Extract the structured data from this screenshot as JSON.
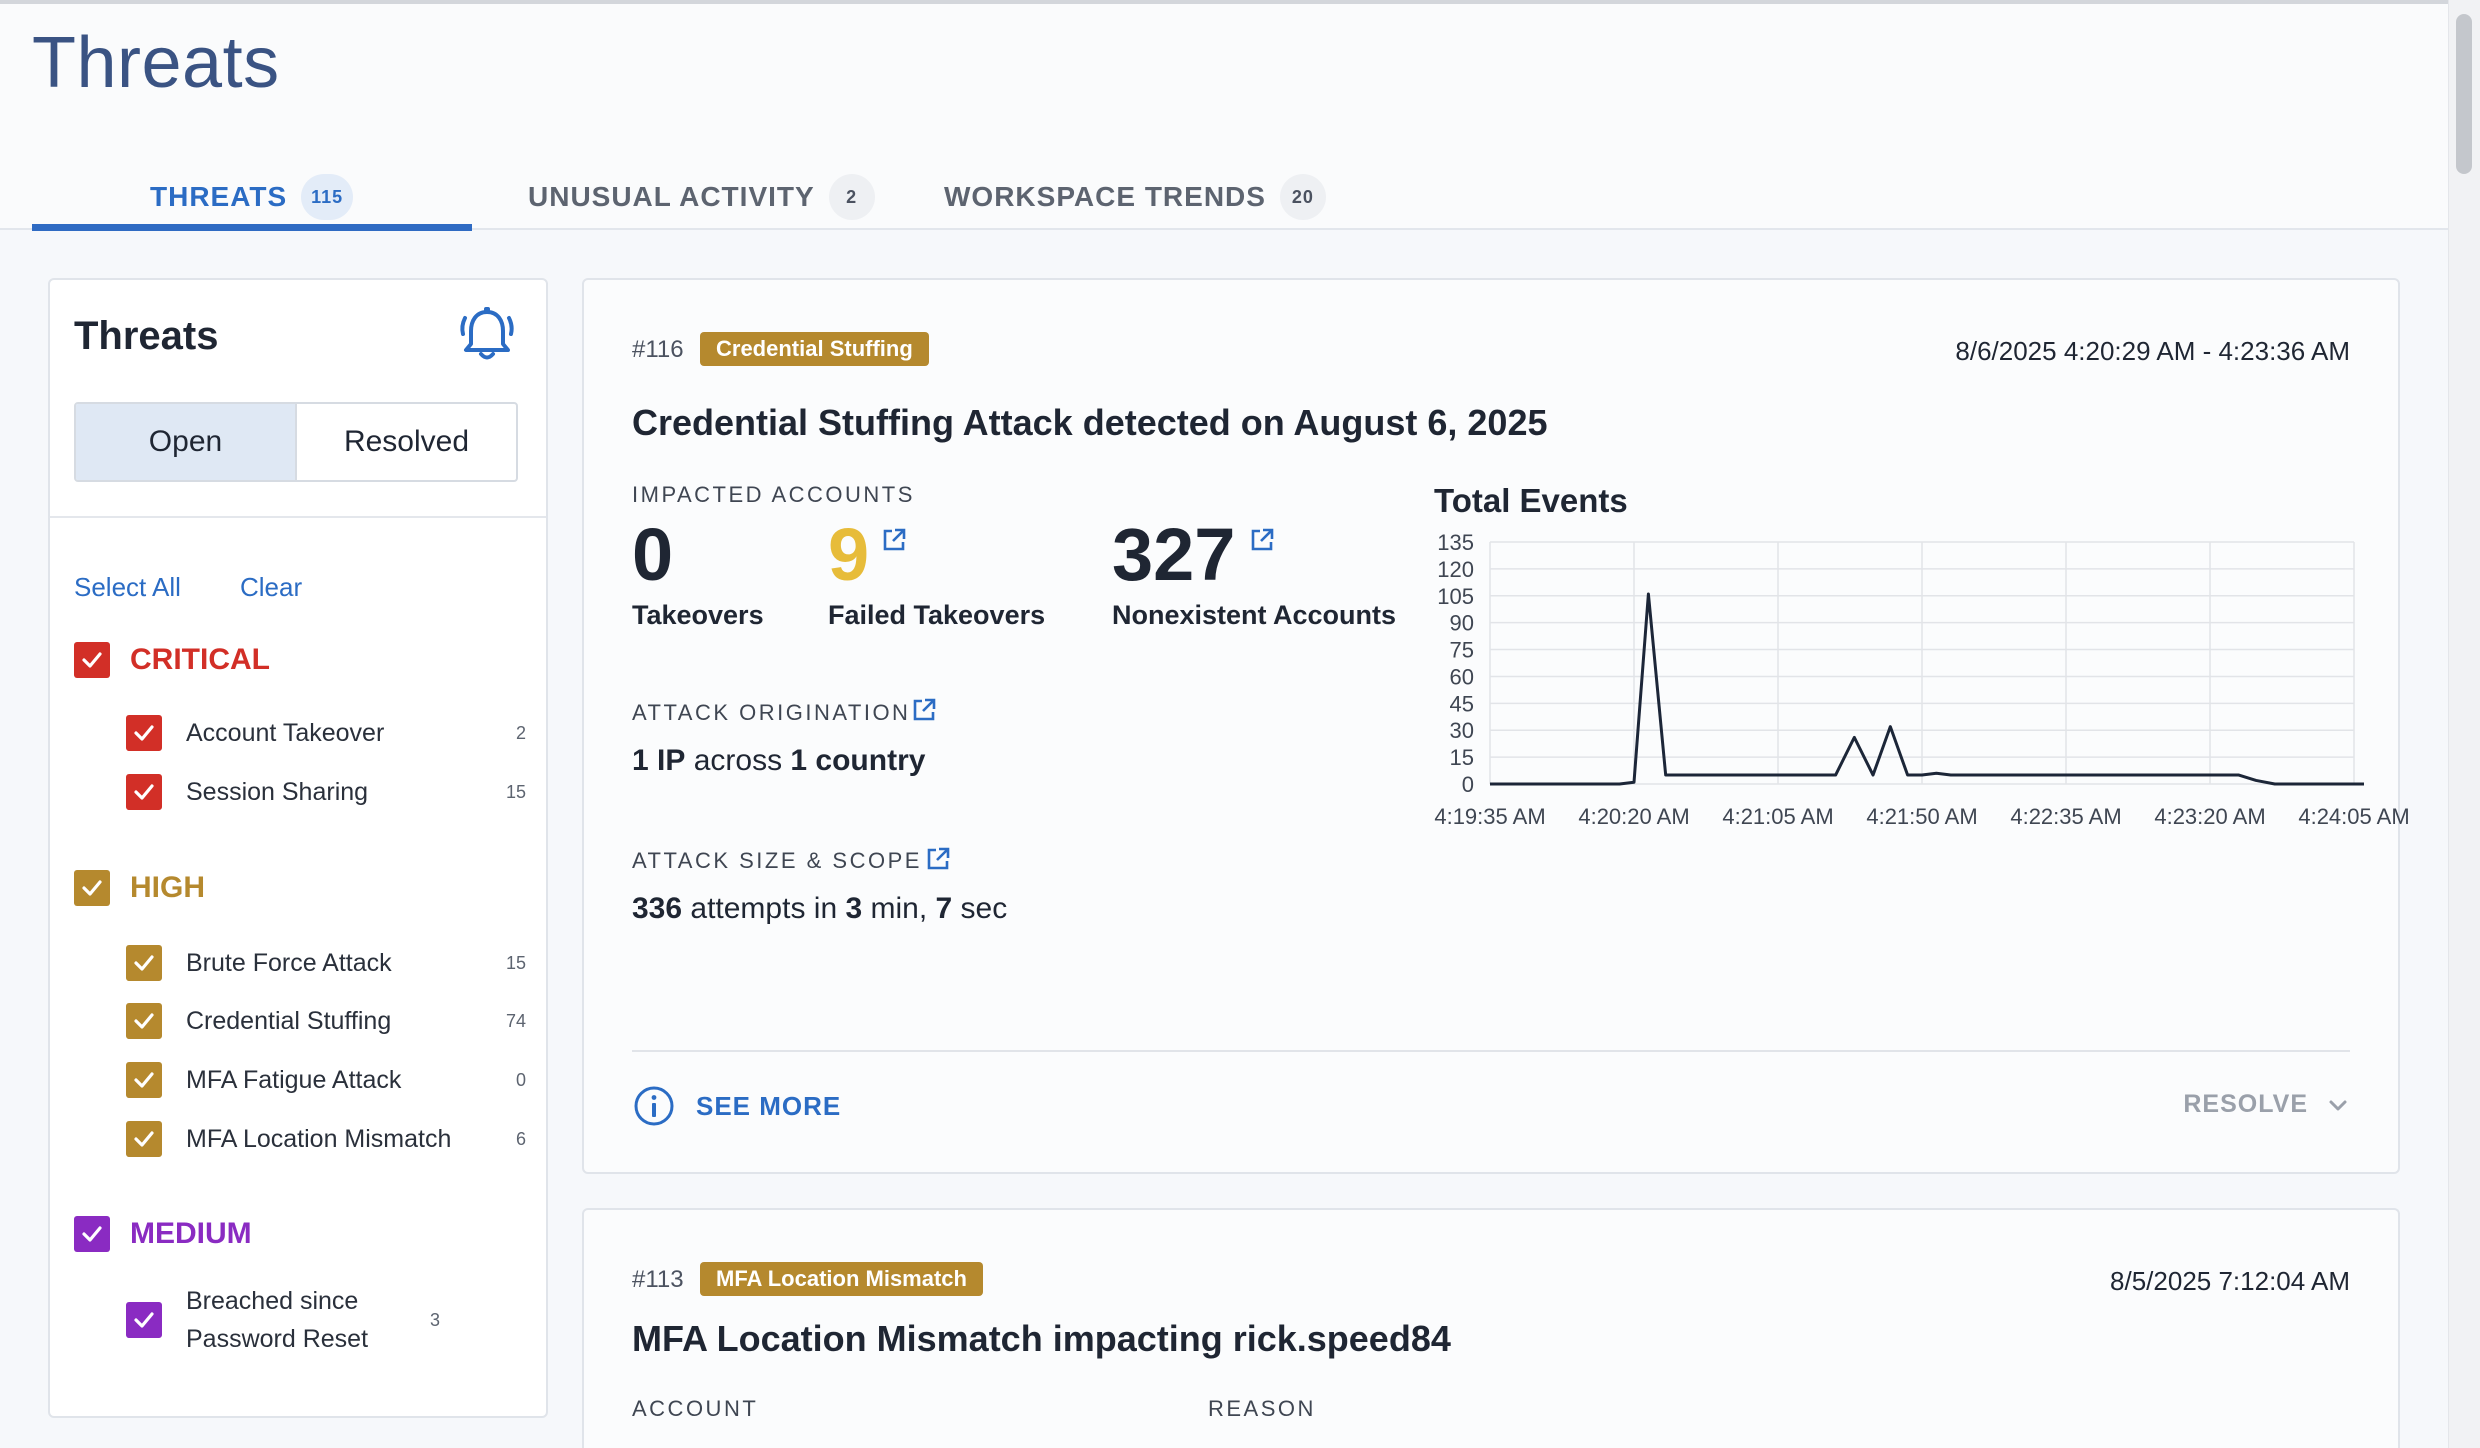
{
  "page": {
    "title": "Threats"
  },
  "tabs": [
    {
      "label": "THREATS",
      "count": "115"
    },
    {
      "label": "UNUSUAL ACTIVITY",
      "count": "2"
    },
    {
      "label": "WORKSPACE TRENDS",
      "count": "20"
    }
  ],
  "sidebar": {
    "title": "Threats",
    "segments": {
      "open": "Open",
      "resolved": "Resolved"
    },
    "select_all": "Select All",
    "clear": "Clear",
    "groups": [
      {
        "label": "CRITICAL",
        "color": "#d22f27",
        "items": [
          {
            "label": "Account Takeover",
            "count": "2"
          },
          {
            "label": "Session Sharing",
            "count": "15"
          }
        ]
      },
      {
        "label": "HIGH",
        "color": "#b5892e",
        "items": [
          {
            "label": "Brute Force Attack",
            "count": "15"
          },
          {
            "label": "Credential Stuffing",
            "count": "74"
          },
          {
            "label": "MFA Fatigue Attack",
            "count": "0"
          },
          {
            "label": "MFA Location Mismatch",
            "count": "6"
          }
        ]
      },
      {
        "label": "MEDIUM",
        "color": "#8a2bc2",
        "items": [
          {
            "label": "Breached since Password Reset",
            "count": "3"
          }
        ]
      }
    ]
  },
  "cards": [
    {
      "id": "#116",
      "badge": "Credential Stuffing",
      "date": "8/6/2025 4:20:29 AM - 4:23:36 AM",
      "title": "Credential Stuffing Attack detected on August 6, 2025",
      "impacted_label": "IMPACTED ACCOUNTS",
      "stats": [
        {
          "value": "0",
          "label": "Takeovers"
        },
        {
          "value": "9",
          "label": "Failed Takeovers"
        },
        {
          "value": "327",
          "label": "Nonexistent Accounts"
        }
      ],
      "origination_label": "ATTACK ORIGINATION",
      "origination": {
        "ip_count": "1 IP",
        "mid": " across ",
        "countries": "1 country"
      },
      "size_label": "ATTACK SIZE & SCOPE",
      "size": {
        "attempts": "336",
        "mid1": " attempts in ",
        "min": "3",
        "mid2": " min, ",
        "sec": "7",
        "end": " sec"
      },
      "see_more": "SEE MORE",
      "resolve": "RESOLVE"
    },
    {
      "id": "#113",
      "badge": "MFA Location Mismatch",
      "date": "8/5/2025 7:12:04 AM",
      "title": "MFA Location Mismatch impacting rick.speed84",
      "account_label": "ACCOUNT",
      "reason_label": "REASON"
    }
  ],
  "chart_data": {
    "type": "line",
    "title": "Total Events",
    "xlabel": "",
    "ylabel": "",
    "ylim": [
      0,
      135
    ],
    "yticks": [
      0,
      15,
      30,
      45,
      60,
      75,
      90,
      105,
      120,
      135
    ],
    "xticks": [
      "4:19:35 AM",
      "4:20:20 AM",
      "4:21:05 AM",
      "4:21:50 AM",
      "4:22:35 AM",
      "4:23:20 AM",
      "4:24:05 AM"
    ],
    "grid": true,
    "color": "#1c2638",
    "series": [
      {
        "x": [
          0,
          0.9,
          1.0,
          1.1,
          1.22,
          1.35,
          2.4,
          2.53,
          2.66,
          2.78,
          2.9,
          3.0,
          3.1,
          3.2,
          5.2,
          5.32,
          5.45,
          6.5
        ],
        "values": [
          0,
          0,
          1,
          106,
          5,
          5,
          5,
          26,
          5,
          32,
          5,
          5,
          6,
          5,
          5,
          2,
          0,
          0
        ]
      }
    ]
  }
}
